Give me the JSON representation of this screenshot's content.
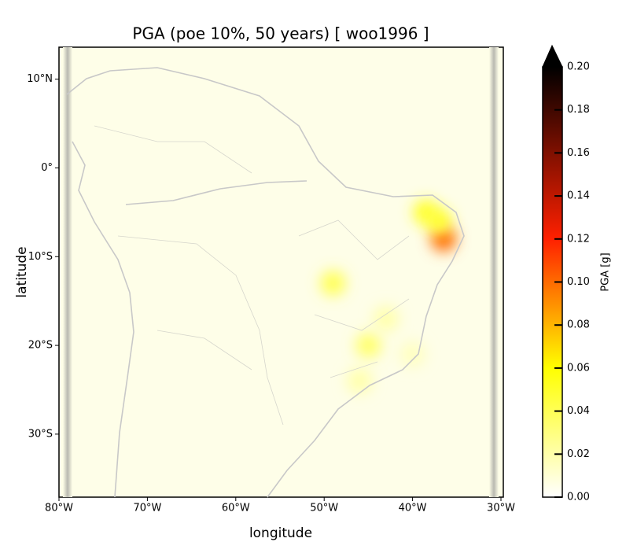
{
  "chart_data": {
    "type": "heatmap-map",
    "title": "PGA (poe 10%, 50 years) [ woo1996 ]",
    "xlabel": "longitude",
    "ylabel": "latitude",
    "xlim": [
      -80,
      -30
    ],
    "ylim": [
      -37.1,
      13.6
    ],
    "xticks": [
      {
        "value": -80,
        "label": "80°W"
      },
      {
        "value": -70,
        "label": "70°W"
      },
      {
        "value": -60,
        "label": "60°W"
      },
      {
        "value": -50,
        "label": "50°W"
      },
      {
        "value": -40,
        "label": "40°W"
      },
      {
        "value": -30,
        "label": "30°W"
      }
    ],
    "yticks": [
      {
        "value": 10,
        "label": "10°N"
      },
      {
        "value": 0,
        "label": "0°"
      },
      {
        "value": -10,
        "label": "10°S"
      },
      {
        "value": -20,
        "label": "20°S"
      },
      {
        "value": -30,
        "label": "30°S"
      }
    ],
    "colorbar": {
      "label": "PGA [g]",
      "lim": [
        0,
        0.2
      ],
      "ticks": [
        {
          "value": 0,
          "label": "0.00"
        },
        {
          "value": 0.02,
          "label": "0.02"
        },
        {
          "value": 0.04,
          "label": "0.04"
        },
        {
          "value": 0.06,
          "label": "0.06"
        },
        {
          "value": 0.08,
          "label": "0.08"
        },
        {
          "value": 0.1,
          "label": "0.10"
        },
        {
          "value": 0.12,
          "label": "0.12"
        },
        {
          "value": 0.14,
          "label": "0.14"
        },
        {
          "value": 0.16,
          "label": "0.16"
        },
        {
          "value": 0.18,
          "label": "0.18"
        },
        {
          "value": 0.2,
          "label": "0.20"
        }
      ]
    },
    "hotspots": {
      "lon": [
        -36.5,
        -38.5,
        -37,
        -49,
        -45,
        -43,
        -46,
        -40
      ],
      "lat": [
        -8,
        -5,
        -6,
        -13,
        -20,
        -17,
        -24,
        -21
      ],
      "values": [
        0.1,
        0.05,
        0.05,
        0.04,
        0.035,
        0.02,
        0.02,
        0.015
      ]
    }
  }
}
